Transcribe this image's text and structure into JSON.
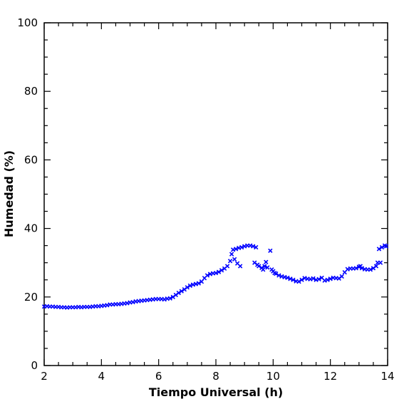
{
  "chart_data": {
    "type": "scatter",
    "title": "",
    "xlabel": "Tiempo Universal (h)",
    "ylabel": "Humedad (%)",
    "xlim": [
      2,
      14
    ],
    "ylim": [
      0,
      100
    ],
    "x_ticks": [
      2,
      4,
      6,
      8,
      10,
      12,
      14
    ],
    "y_ticks": [
      0,
      20,
      40,
      60,
      80,
      100
    ],
    "x_minor_step": 0.5,
    "y_minor_step": 5,
    "marker": "x",
    "color": "#0000ff",
    "grid": false,
    "legend": "none",
    "series": [
      {
        "points": [
          [
            2.0,
            17.2
          ],
          [
            2.1,
            17.3
          ],
          [
            2.2,
            17.2
          ],
          [
            2.3,
            17.2
          ],
          [
            2.4,
            17.1
          ],
          [
            2.5,
            17.1
          ],
          [
            2.6,
            17.0
          ],
          [
            2.7,
            17.0
          ],
          [
            2.8,
            16.9
          ],
          [
            2.9,
            17.0
          ],
          [
            3.0,
            17.0
          ],
          [
            3.1,
            17.0
          ],
          [
            3.2,
            17.1
          ],
          [
            3.3,
            17.0
          ],
          [
            3.4,
            17.1
          ],
          [
            3.5,
            17.1
          ],
          [
            3.6,
            17.1
          ],
          [
            3.7,
            17.2
          ],
          [
            3.8,
            17.3
          ],
          [
            3.9,
            17.3
          ],
          [
            4.0,
            17.4
          ],
          [
            4.1,
            17.5
          ],
          [
            4.2,
            17.6
          ],
          [
            4.3,
            17.8
          ],
          [
            4.4,
            17.8
          ],
          [
            4.5,
            17.9
          ],
          [
            4.6,
            17.9
          ],
          [
            4.7,
            18.0
          ],
          [
            4.8,
            18.1
          ],
          [
            4.9,
            18.2
          ],
          [
            5.0,
            18.4
          ],
          [
            5.1,
            18.5
          ],
          [
            5.2,
            18.7
          ],
          [
            5.3,
            18.8
          ],
          [
            5.4,
            18.9
          ],
          [
            5.5,
            19.0
          ],
          [
            5.6,
            19.1
          ],
          [
            5.7,
            19.2
          ],
          [
            5.8,
            19.3
          ],
          [
            5.9,
            19.4
          ],
          [
            6.0,
            19.4
          ],
          [
            6.1,
            19.4
          ],
          [
            6.2,
            19.3
          ],
          [
            6.3,
            19.5
          ],
          [
            6.4,
            19.6
          ],
          [
            6.5,
            20.0
          ],
          [
            6.6,
            20.6
          ],
          [
            6.7,
            21.2
          ],
          [
            6.8,
            21.7
          ],
          [
            6.9,
            22.2
          ],
          [
            7.0,
            22.8
          ],
          [
            7.1,
            23.3
          ],
          [
            7.2,
            23.6
          ],
          [
            7.3,
            23.8
          ],
          [
            7.4,
            24.0
          ],
          [
            7.5,
            24.5
          ],
          [
            7.6,
            25.5
          ],
          [
            7.7,
            26.3
          ],
          [
            7.8,
            26.7
          ],
          [
            7.9,
            26.9
          ],
          [
            8.0,
            27.0
          ],
          [
            8.1,
            27.3
          ],
          [
            8.2,
            27.8
          ],
          [
            8.3,
            28.3
          ],
          [
            8.4,
            29.0
          ],
          [
            8.5,
            30.5
          ],
          [
            8.55,
            32.5
          ],
          [
            8.6,
            33.8
          ],
          [
            8.65,
            31.0
          ],
          [
            8.7,
            34.0
          ],
          [
            8.75,
            29.8
          ],
          [
            8.8,
            34.3
          ],
          [
            8.85,
            29.0
          ],
          [
            8.9,
            34.5
          ],
          [
            9.0,
            34.8
          ],
          [
            9.1,
            35.0
          ],
          [
            9.2,
            35.0
          ],
          [
            9.3,
            34.8
          ],
          [
            9.35,
            30.0
          ],
          [
            9.4,
            34.5
          ],
          [
            9.45,
            29.4
          ],
          [
            9.5,
            29.0
          ],
          [
            9.6,
            28.5
          ],
          [
            9.65,
            28.0
          ],
          [
            9.7,
            29.0
          ],
          [
            9.75,
            30.2
          ],
          [
            9.8,
            28.6
          ],
          [
            9.9,
            33.5
          ],
          [
            9.95,
            28.0
          ],
          [
            10.0,
            27.5
          ],
          [
            10.05,
            27.0
          ],
          [
            10.1,
            26.8
          ],
          [
            10.2,
            26.3
          ],
          [
            10.3,
            26.0
          ],
          [
            10.4,
            25.8
          ],
          [
            10.5,
            25.6
          ],
          [
            10.6,
            25.3
          ],
          [
            10.7,
            25.0
          ],
          [
            10.8,
            24.6
          ],
          [
            10.9,
            24.5
          ],
          [
            11.0,
            25.0
          ],
          [
            11.1,
            25.5
          ],
          [
            11.2,
            25.3
          ],
          [
            11.3,
            25.2
          ],
          [
            11.4,
            25.4
          ],
          [
            11.5,
            25.0
          ],
          [
            11.6,
            25.2
          ],
          [
            11.7,
            25.6
          ],
          [
            11.8,
            24.8
          ],
          [
            11.9,
            25.0
          ],
          [
            12.0,
            25.3
          ],
          [
            12.1,
            25.6
          ],
          [
            12.2,
            25.5
          ],
          [
            12.3,
            25.4
          ],
          [
            12.4,
            26.0
          ],
          [
            12.5,
            27.2
          ],
          [
            12.6,
            28.1
          ],
          [
            12.7,
            28.3
          ],
          [
            12.8,
            28.3
          ],
          [
            12.9,
            28.4
          ],
          [
            13.0,
            28.8
          ],
          [
            13.05,
            29.0
          ],
          [
            13.1,
            28.4
          ],
          [
            13.2,
            28.1
          ],
          [
            13.3,
            28.0
          ],
          [
            13.4,
            28.0
          ],
          [
            13.5,
            28.4
          ],
          [
            13.6,
            29.0
          ],
          [
            13.65,
            30.0
          ],
          [
            13.7,
            34.0
          ],
          [
            13.75,
            30.0
          ],
          [
            13.8,
            34.5
          ],
          [
            13.9,
            35.0
          ],
          [
            13.95,
            34.8
          ]
        ]
      }
    ]
  }
}
